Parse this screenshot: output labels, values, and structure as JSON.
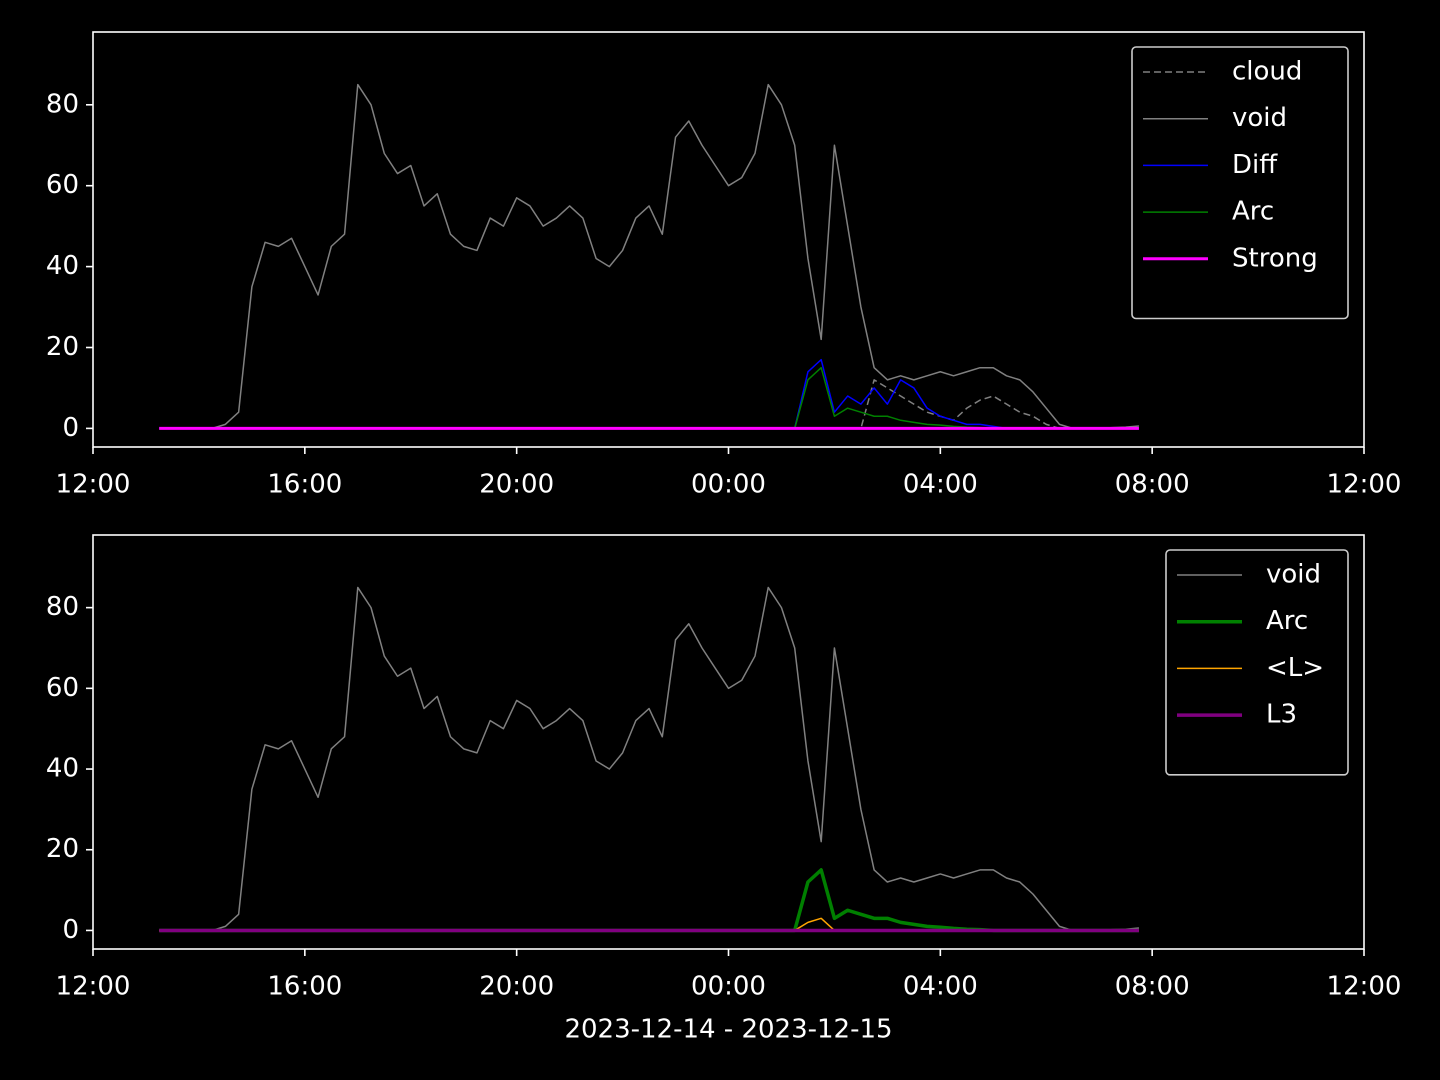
{
  "chart_data": [
    {
      "type": "line",
      "legend": "upper right",
      "xlim": [
        0,
        24
      ],
      "ylim": [
        -4.6,
        98
      ],
      "xticks": [
        {
          "value": 0,
          "label": "12:00"
        },
        {
          "value": 4,
          "label": "16:00"
        },
        {
          "value": 8,
          "label": "20:00"
        },
        {
          "value": 12,
          "label": "00:00"
        },
        {
          "value": 16,
          "label": "04:00"
        },
        {
          "value": 20,
          "label": "08:00"
        },
        {
          "value": 24,
          "label": "12:00"
        }
      ],
      "yticks": [
        0,
        20,
        40,
        60,
        80
      ],
      "x": [
        1.25,
        1.5,
        1.75,
        2,
        2.25,
        2.5,
        2.75,
        3,
        3.25,
        3.5,
        3.75,
        4,
        4.25,
        4.5,
        4.75,
        5,
        5.25,
        5.5,
        5.75,
        6,
        6.25,
        6.5,
        6.75,
        7,
        7.25,
        7.5,
        7.75,
        8,
        8.25,
        8.5,
        8.75,
        9,
        9.25,
        9.5,
        9.75,
        10,
        10.25,
        10.5,
        10.75,
        11,
        11.25,
        11.5,
        11.75,
        12,
        12.25,
        12.5,
        12.75,
        13,
        13.25,
        13.5,
        13.75,
        14,
        14.25,
        14.5,
        14.75,
        15,
        15.25,
        15.5,
        15.75,
        16,
        16.25,
        16.5,
        16.75,
        17,
        17.25,
        17.5,
        17.75,
        18,
        18.25,
        18.5,
        18.75,
        19,
        19.25,
        19.5,
        19.75
      ],
      "series": [
        {
          "name": "cloud",
          "color": "#808080",
          "dashed": true,
          "width": 1.5,
          "values": [
            0,
            0,
            0,
            0,
            0,
            0,
            0,
            0,
            0,
            0,
            0,
            0,
            0,
            0,
            0,
            0,
            0,
            0,
            0,
            0,
            0,
            0,
            0,
            0,
            0,
            0,
            0,
            0,
            0,
            0,
            0,
            0,
            0,
            0,
            0,
            0,
            0,
            0,
            0,
            0,
            0,
            0,
            0,
            0,
            0,
            0,
            0,
            0,
            0,
            0,
            0,
            0,
            0,
            0,
            12,
            10,
            8,
            6,
            4,
            3,
            2,
            5,
            7,
            8,
            6,
            4,
            3,
            1,
            0,
            0,
            0,
            0,
            0,
            0,
            0
          ]
        },
        {
          "name": "void",
          "color": "#808080",
          "width": 1.5,
          "values": [
            0,
            0,
            0,
            0,
            0,
            1,
            4,
            35,
            46,
            45,
            47,
            40,
            33,
            45,
            48,
            85,
            80,
            68,
            63,
            65,
            55,
            58,
            48,
            45,
            44,
            52,
            50,
            57,
            55,
            50,
            52,
            55,
            52,
            42,
            40,
            44,
            52,
            55,
            48,
            72,
            76,
            70,
            65,
            60,
            62,
            68,
            85,
            80,
            70,
            42,
            22,
            70,
            50,
            30,
            15,
            12,
            13,
            12,
            13,
            14,
            13,
            14,
            15,
            15,
            13,
            12,
            9,
            5,
            1,
            0,
            0,
            0,
            0.2,
            0.3,
            0.6
          ]
        },
        {
          "name": "Diff",
          "color": "#0000ff",
          "width": 1.5,
          "values": [
            0,
            0,
            0,
            0,
            0,
            0,
            0,
            0,
            0,
            0,
            0,
            0,
            0,
            0,
            0,
            0,
            0,
            0,
            0,
            0,
            0,
            0,
            0,
            0,
            0,
            0,
            0,
            0,
            0,
            0,
            0,
            0,
            0,
            0,
            0,
            0,
            0,
            0,
            0,
            0,
            0,
            0,
            0,
            0,
            0,
            0,
            0,
            0,
            0,
            14,
            17,
            4,
            8,
            6,
            10,
            6,
            12,
            10,
            5,
            3,
            2,
            1,
            1,
            0.5,
            0,
            0,
            0,
            0,
            0,
            0,
            0,
            0,
            0,
            0,
            0
          ]
        },
        {
          "name": "Arc",
          "color": "#008000",
          "width": 1.5,
          "values": [
            0,
            0,
            0,
            0,
            0,
            0,
            0,
            0,
            0,
            0,
            0,
            0,
            0,
            0,
            0,
            0,
            0,
            0,
            0,
            0,
            0,
            0,
            0,
            0,
            0,
            0,
            0,
            0,
            0,
            0,
            0,
            0,
            0,
            0,
            0,
            0,
            0,
            0,
            0,
            0,
            0,
            0,
            0,
            0,
            0,
            0,
            0,
            0,
            0,
            12,
            15,
            3,
            5,
            4,
            3,
            3,
            2,
            1.5,
            1,
            0.8,
            0.5,
            0.3,
            0.2,
            0,
            0,
            0,
            0,
            0,
            0,
            0,
            0,
            0,
            0,
            0,
            0
          ]
        },
        {
          "name": "Strong",
          "color": "#ff00ff",
          "width": 3,
          "values": [
            0,
            0,
            0,
            0,
            0,
            0,
            0,
            0,
            0,
            0,
            0,
            0,
            0,
            0,
            0,
            0,
            0,
            0,
            0,
            0,
            0,
            0,
            0,
            0,
            0,
            0,
            0,
            0,
            0,
            0,
            0,
            0,
            0,
            0,
            0,
            0,
            0,
            0,
            0,
            0,
            0,
            0,
            0,
            0,
            0,
            0,
            0,
            0,
            0,
            0,
            0,
            0,
            0,
            0,
            0,
            0,
            0,
            0,
            0,
            0,
            0,
            0,
            0,
            0,
            0,
            0,
            0,
            0,
            0,
            0,
            0,
            0,
            0,
            0,
            0
          ]
        }
      ]
    },
    {
      "type": "line",
      "legend": "upper right",
      "xlabel": "2023-12-14 - 2023-12-15",
      "xlim": [
        0,
        24
      ],
      "ylim": [
        -4.6,
        98
      ],
      "xticks": [
        {
          "value": 0,
          "label": "12:00"
        },
        {
          "value": 4,
          "label": "16:00"
        },
        {
          "value": 8,
          "label": "20:00"
        },
        {
          "value": 12,
          "label": "00:00"
        },
        {
          "value": 16,
          "label": "04:00"
        },
        {
          "value": 20,
          "label": "08:00"
        },
        {
          "value": 24,
          "label": "12:00"
        }
      ],
      "yticks": [
        0,
        20,
        40,
        60,
        80
      ],
      "x": [
        1.25,
        1.5,
        1.75,
        2,
        2.25,
        2.5,
        2.75,
        3,
        3.25,
        3.5,
        3.75,
        4,
        4.25,
        4.5,
        4.75,
        5,
        5.25,
        5.5,
        5.75,
        6,
        6.25,
        6.5,
        6.75,
        7,
        7.25,
        7.5,
        7.75,
        8,
        8.25,
        8.5,
        8.75,
        9,
        9.25,
        9.5,
        9.75,
        10,
        10.25,
        10.5,
        10.75,
        11,
        11.25,
        11.5,
        11.75,
        12,
        12.25,
        12.5,
        12.75,
        13,
        13.25,
        13.5,
        13.75,
        14,
        14.25,
        14.5,
        14.75,
        15,
        15.25,
        15.5,
        15.75,
        16,
        16.25,
        16.5,
        16.75,
        17,
        17.25,
        17.5,
        17.75,
        18,
        18.25,
        18.5,
        18.75,
        19,
        19.25,
        19.5,
        19.75
      ],
      "series": [
        {
          "name": "void",
          "color": "#808080",
          "width": 1.5,
          "values": [
            0,
            0,
            0,
            0,
            0,
            1,
            4,
            35,
            46,
            45,
            47,
            40,
            33,
            45,
            48,
            85,
            80,
            68,
            63,
            65,
            55,
            58,
            48,
            45,
            44,
            52,
            50,
            57,
            55,
            50,
            52,
            55,
            52,
            42,
            40,
            44,
            52,
            55,
            48,
            72,
            76,
            70,
            65,
            60,
            62,
            68,
            85,
            80,
            70,
            42,
            22,
            70,
            50,
            30,
            15,
            12,
            13,
            12,
            13,
            14,
            13,
            14,
            15,
            15,
            13,
            12,
            9,
            5,
            1,
            0,
            0,
            0,
            0.2,
            0.3,
            0.6
          ]
        },
        {
          "name": "Arc",
          "color": "#008000",
          "width": 3.5,
          "values": [
            0,
            0,
            0,
            0,
            0,
            0,
            0,
            0,
            0,
            0,
            0,
            0,
            0,
            0,
            0,
            0,
            0,
            0,
            0,
            0,
            0,
            0,
            0,
            0,
            0,
            0,
            0,
            0,
            0,
            0,
            0,
            0,
            0,
            0,
            0,
            0,
            0,
            0,
            0,
            0,
            0,
            0,
            0,
            0,
            0,
            0,
            0,
            0,
            0,
            12,
            15,
            3,
            5,
            4,
            3,
            3,
            2,
            1.5,
            1,
            0.8,
            0.5,
            0.3,
            0.2,
            0,
            0,
            0,
            0,
            0,
            0,
            0,
            0,
            0,
            0,
            0,
            0
          ]
        },
        {
          "name": "<L>",
          "color": "#ffa500",
          "width": 1.5,
          "values": [
            0,
            0,
            0,
            0,
            0,
            0,
            0,
            0,
            0,
            0,
            0,
            0,
            0,
            0,
            0,
            0,
            0,
            0,
            0,
            0,
            0,
            0,
            0,
            0,
            0,
            0,
            0,
            0,
            0,
            0,
            0,
            0,
            0,
            0,
            0,
            0,
            0,
            0,
            0,
            0,
            0,
            0,
            0,
            0,
            0,
            0,
            0,
            0,
            0,
            2,
            3,
            0,
            0,
            0,
            0,
            0,
            0,
            0,
            0,
            0,
            0,
            0,
            0,
            0,
            0,
            0,
            0,
            0,
            0,
            0,
            0,
            0,
            0,
            0,
            0
          ]
        },
        {
          "name": "L3",
          "color": "#800080",
          "width": 3.5,
          "values": [
            0,
            0,
            0,
            0,
            0,
            0,
            0,
            0,
            0,
            0,
            0,
            0,
            0,
            0,
            0,
            0,
            0,
            0,
            0,
            0,
            0,
            0,
            0,
            0,
            0,
            0,
            0,
            0,
            0,
            0,
            0,
            0,
            0,
            0,
            0,
            0,
            0,
            0,
            0,
            0,
            0,
            0,
            0,
            0,
            0,
            0,
            0,
            0,
            0,
            0,
            0,
            0,
            0,
            0,
            0,
            0,
            0,
            0,
            0,
            0,
            0,
            0,
            0,
            0,
            0,
            0,
            0,
            0,
            0,
            0,
            0,
            0,
            0,
            0,
            0
          ]
        }
      ]
    }
  ]
}
